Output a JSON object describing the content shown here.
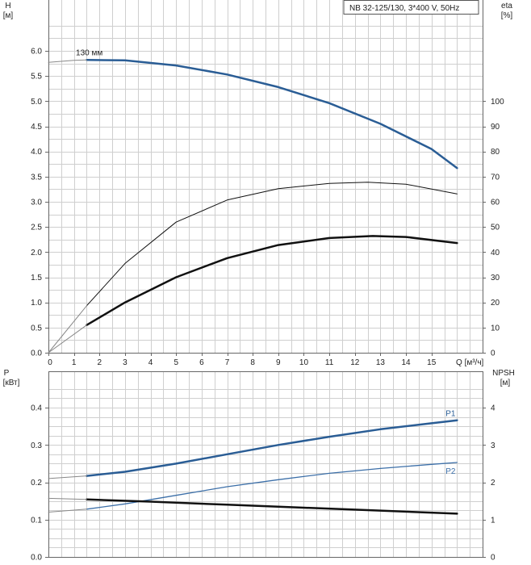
{
  "title": "NB 32-125/130, 3*400 V, 50Hz",
  "colors": {
    "blue": "#2a5d95",
    "light_blue": "#3c6fa8",
    "black": "#111111",
    "gray": "#888888",
    "grid": "#cfcfcf"
  },
  "chart_data": [
    {
      "type": "line",
      "xlabel": "Q [м³/ч]",
      "ylabel_left": [
        "H",
        "[м]"
      ],
      "ylabel_right": [
        "eta",
        "[%]"
      ],
      "xlim": [
        0,
        17
      ],
      "ylim_left": [
        0,
        6.0
      ],
      "ylim_right": [
        0,
        120
      ],
      "x_ticks": [
        0,
        1,
        2,
        3,
        4,
        5,
        6,
        7,
        8,
        9,
        10,
        11,
        12,
        13,
        14,
        15
      ],
      "x_tick_labels": [
        "0",
        "1",
        "2",
        "3",
        "4",
        "5",
        "6",
        "7",
        "8",
        "9",
        "10",
        "11",
        "12",
        "13",
        "14",
        "15"
      ],
      "y_left_ticks": [
        0,
        0.5,
        1.0,
        1.5,
        2.0,
        2.5,
        3.0,
        3.5,
        4.0,
        4.5,
        5.0,
        5.5,
        6.0
      ],
      "y_left_tick_labels": [
        "0.0",
        "0.5",
        "1.0",
        "1.5",
        "2.0",
        "2.5",
        "3.0",
        "3.5",
        "4.0",
        "4.5",
        "5.0",
        "5.5",
        "6.0"
      ],
      "y_right_ticks": [
        0,
        10,
        20,
        30,
        40,
        50,
        60,
        70,
        80,
        90,
        100
      ],
      "y_right_tick_labels": [
        "0",
        "10",
        "20",
        "30",
        "40",
        "50",
        "60",
        "70",
        "80",
        "90",
        "100"
      ],
      "annotations": [
        {
          "text": "130 мм",
          "x": 1.6,
          "y": 5.88
        }
      ],
      "grid": true,
      "series": [
        {
          "axis": "left",
          "color": "#2a5d95",
          "width": 2.5,
          "x": [
            1.5,
            3,
            5,
            7,
            9,
            11,
            13,
            15,
            16
          ],
          "y": [
            5.82,
            5.81,
            5.71,
            5.53,
            5.28,
            4.96,
            4.55,
            4.05,
            3.67
          ]
        },
        {
          "axis": "left",
          "color": "#888888",
          "width": 1,
          "x": [
            0,
            1,
            1.5
          ],
          "y": [
            5.77,
            5.81,
            5.82
          ]
        },
        {
          "axis": "right",
          "color": "#111111",
          "width": 1,
          "x": [
            1.5,
            3,
            5,
            7,
            9,
            11,
            12.5,
            14,
            16
          ],
          "y": [
            18.7,
            35.5,
            51.9,
            60.7,
            65.2,
            67.3,
            67.8,
            67.0,
            63.1
          ]
        },
        {
          "axis": "right",
          "color": "#888888",
          "width": 1,
          "x": [
            0,
            1.5
          ],
          "y": [
            0,
            18.7
          ]
        },
        {
          "axis": "left",
          "color": "#111111",
          "width": 2.5,
          "x": [
            1.5,
            3,
            5,
            7,
            9,
            11,
            12.7,
            14,
            16
          ],
          "y": [
            0.55,
            1.0,
            1.5,
            1.88,
            2.14,
            2.28,
            2.32,
            2.3,
            2.18
          ]
        },
        {
          "axis": "left",
          "color": "#888888",
          "width": 1,
          "x": [
            0,
            1.5
          ],
          "y": [
            0,
            0.55
          ]
        }
      ]
    },
    {
      "type": "line",
      "xlim": [
        0,
        17
      ],
      "ylabel_left": [
        "P",
        "[кВт]"
      ],
      "ylabel_right": [
        "NPSH",
        "[м]"
      ],
      "ylim_left": [
        0,
        0.45
      ],
      "ylim_right": [
        0,
        4.5
      ],
      "y_left_ticks": [
        0,
        0.1,
        0.2,
        0.3,
        0.4
      ],
      "y_left_tick_labels": [
        "0.0",
        "0.1",
        "0.2",
        "0.3",
        "0.4"
      ],
      "y_right_ticks": [
        0,
        1,
        2,
        3,
        4
      ],
      "y_right_tick_labels": [
        "0",
        "1",
        "2",
        "3",
        "4"
      ],
      "grid": true,
      "series": [
        {
          "name": "P1",
          "axis": "left",
          "color": "#2a5d95",
          "width": 2.5,
          "x": [
            1.5,
            3,
            5,
            7,
            9,
            11,
            13,
            15,
            16
          ],
          "y": [
            0.217,
            0.228,
            0.25,
            0.275,
            0.3,
            0.322,
            0.342,
            0.358,
            0.366
          ]
        },
        {
          "axis": "left",
          "color": "#888888",
          "width": 1,
          "x": [
            0,
            1.5
          ],
          "y": [
            0.21,
            0.217
          ]
        },
        {
          "name": "P2",
          "axis": "left",
          "color": "#3c6fa8",
          "width": 1.3,
          "x": [
            1.5,
            3,
            5,
            7,
            9,
            11,
            13,
            15,
            16
          ],
          "y": [
            0.128,
            0.142,
            0.165,
            0.188,
            0.207,
            0.224,
            0.237,
            0.248,
            0.253
          ]
        },
        {
          "axis": "left",
          "color": "#888888",
          "width": 1,
          "x": [
            0,
            1.5
          ],
          "y": [
            0.12,
            0.128
          ]
        },
        {
          "axis": "right",
          "color": "#111111",
          "width": 2.5,
          "x": [
            1.5,
            4,
            7,
            10,
            13,
            16
          ],
          "y": [
            1.54,
            1.48,
            1.4,
            1.32,
            1.24,
            1.16
          ]
        },
        {
          "axis": "right",
          "color": "#888888",
          "width": 1,
          "x": [
            0,
            1.5
          ],
          "y": [
            1.57,
            1.54
          ]
        }
      ]
    }
  ]
}
